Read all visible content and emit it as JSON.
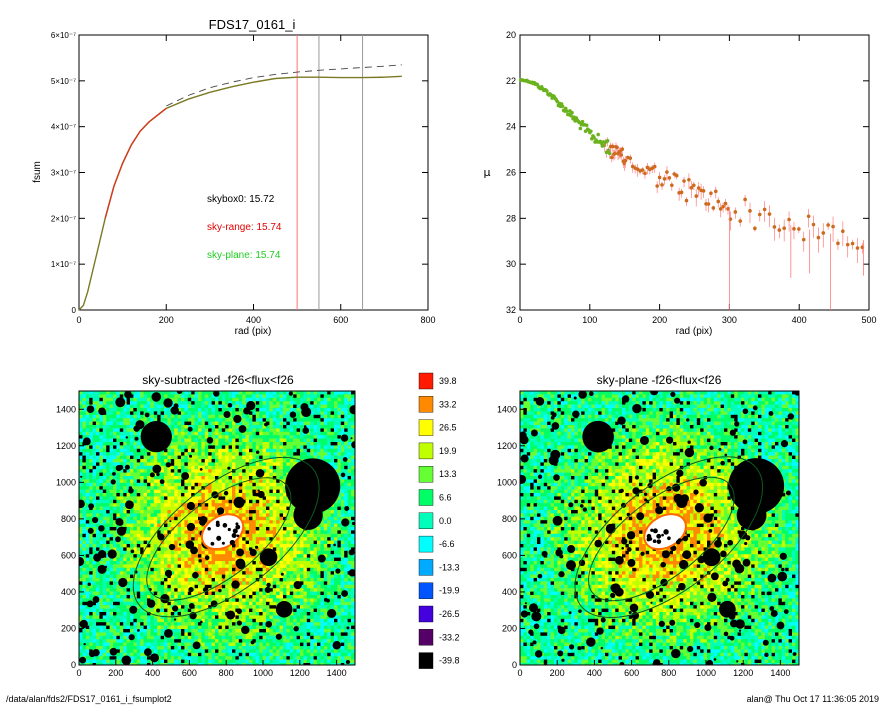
{
  "colors": {
    "growth_curve": "#7a7a22",
    "growth_early": "#d43a1e",
    "model_dash": "#444444",
    "sky_range": "#e60000",
    "sky_plane": "#1fcc1f",
    "vline_red": "#ff7070",
    "vline_gray": "#9a9a9a",
    "profile_points": "#cc6a1e",
    "profile_inner": "#6ab21e",
    "errbar": "#ff7a7a"
  },
  "footer": {
    "path": "/data/alan/fds2/FDS17_0161_i_fsumplot2",
    "stamp": "alan@  Thu Oct 17 11:36:05 2019"
  },
  "chart_data": [
    {
      "type": "line",
      "title": "FDS17_0161_i",
      "xlabel": "rad (pix)",
      "ylabel": "fsum",
      "xlim": [
        0,
        800
      ],
      "ylim": [
        0,
        6e-07
      ],
      "xticks": [
        "0",
        "200",
        "400",
        "600",
        "800"
      ],
      "yticks": [
        "0",
        "1×10⁻⁷",
        "2×10⁻⁷",
        "3×10⁻⁷",
        "4×10⁻⁷",
        "5×10⁻⁷",
        "6×10⁻⁷"
      ],
      "series": [
        {
          "values": "growth curve",
          "x": [
            0,
            10,
            20,
            40,
            60,
            80,
            100,
            120,
            140,
            160,
            180,
            200,
            250,
            300,
            350,
            400,
            450,
            500,
            550,
            600,
            650,
            700,
            740
          ],
          "y": [
            0,
            1e-08,
            4e-08,
            1.2e-07,
            2e-07,
            2.7e-07,
            3.2e-07,
            3.6e-07,
            3.9e-07,
            4.1e-07,
            4.25e-07,
            4.4e-07,
            4.6e-07,
            4.75e-07,
            4.87e-07,
            4.97e-07,
            5.05e-07,
            5.08e-07,
            5.08e-07,
            5.07e-07,
            5.07e-07,
            5.08e-07,
            5.1e-07
          ]
        },
        {
          "values": "model extrapolation",
          "x": [
            200,
            250,
            300,
            350,
            400,
            450,
            500,
            550,
            600,
            650,
            700,
            740
          ],
          "y": [
            4.45e-07,
            4.68e-07,
            4.85e-07,
            4.97e-07,
            5.07e-07,
            5.14e-07,
            5.19e-07,
            5.23e-07,
            5.26e-07,
            5.29e-07,
            5.32e-07,
            5.35e-07
          ]
        }
      ],
      "vlines": [
        {
          "x": 500,
          "color": "red"
        },
        {
          "x": 550,
          "color": "gray"
        },
        {
          "x": 650,
          "color": "gray"
        }
      ],
      "annotations": [
        {
          "text": "skybox0: 15.72",
          "color": "black"
        },
        {
          "text": "sky-range: 15.74",
          "color": "red"
        },
        {
          "text": "sky-plane: 15.74",
          "color": "green"
        }
      ]
    },
    {
      "type": "scatter",
      "title": "",
      "xlabel": "rad (pix)",
      "ylabel": "μ",
      "xlim": [
        0,
        500
      ],
      "ylim": [
        32,
        20
      ],
      "y_inverted": true,
      "xticks": [
        "0",
        "100",
        "200",
        "300",
        "400",
        "500"
      ],
      "yticks": [
        "20",
        "22",
        "24",
        "26",
        "28",
        "30",
        "32"
      ],
      "profile_trend": {
        "x": [
          0,
          10,
          20,
          40,
          60,
          80,
          100,
          120,
          140,
          160,
          180,
          200,
          250,
          300,
          350,
          400,
          450,
          500
        ],
        "y": [
          21.95,
          22.0,
          22.1,
          22.5,
          23.1,
          23.7,
          24.3,
          24.8,
          25.2,
          25.6,
          25.9,
          26.2,
          26.9,
          27.5,
          28.0,
          28.4,
          28.7,
          29.0
        ]
      },
      "scatter_spread": 0.6,
      "deep_dips": [
        {
          "x": 300,
          "y": 32
        },
        {
          "x": 445,
          "y": 32
        },
        {
          "x": 388,
          "y": 30.6
        },
        {
          "x": 415,
          "y": 30.4
        },
        {
          "x": 492,
          "y": 30.5
        }
      ]
    },
    {
      "type": "heatmap",
      "title": "sky-subtracted -f26<flux<f26",
      "xlim": [
        0,
        1500
      ],
      "ylim": [
        0,
        1500
      ],
      "xticks": [
        "0",
        "200",
        "400",
        "600",
        "800",
        "1000",
        "1200",
        "1400"
      ],
      "yticks": [
        "0",
        "200",
        "400",
        "600",
        "800",
        "1000",
        "1200",
        "1400"
      ],
      "ellipses": [
        {
          "cx": 800,
          "cy": 700,
          "a": 600,
          "b": 290,
          "angle_deg": -38
        },
        {
          "cx": 760,
          "cy": 690,
          "a": 470,
          "b": 210,
          "angle_deg": -38
        }
      ],
      "masked_objects": [
        {
          "x": 1270,
          "y": 980,
          "r": 150
        },
        {
          "x": 1245,
          "y": 820,
          "r": 80
        },
        {
          "x": 420,
          "y": 1250,
          "r": 85
        },
        {
          "x": 1030,
          "y": 590,
          "r": 48
        },
        {
          "x": 1115,
          "y": 305,
          "r": 45
        },
        {
          "x": 870,
          "y": 890,
          "r": 30
        },
        {
          "x": 620,
          "y": 270,
          "r": 20
        },
        {
          "x": 880,
          "y": 550,
          "r": 25
        }
      ],
      "core": {
        "x": 780,
        "y": 730,
        "rx": 120,
        "ry": 85
      }
    },
    {
      "type": "heatmap",
      "title": "sky-plane -f26<flux<f26",
      "xlim": [
        0,
        1500
      ],
      "ylim": [
        0,
        1500
      ],
      "xticks": [
        "0",
        "200",
        "400",
        "600",
        "800",
        "1000",
        "1200",
        "1400"
      ],
      "yticks": [
        "0",
        "200",
        "400",
        "600",
        "800",
        "1000",
        "1200",
        "1400"
      ]
    },
    {
      "type": "colorbar",
      "labels": [
        "39.8",
        "33.2",
        "26.5",
        "19.9",
        "13.3",
        "6.6",
        "0.0",
        "-6.6",
        "-13.3",
        "-19.9",
        "-26.5",
        "-33.2",
        "-39.8"
      ],
      "colors": [
        "#ff1a00",
        "#ff8a00",
        "#ffff00",
        "#bfff00",
        "#66ff33",
        "#00ff66",
        "#00ffbb",
        "#00ffff",
        "#00aaff",
        "#0055ff",
        "#4400dd",
        "#550066",
        "#000000"
      ]
    }
  ]
}
